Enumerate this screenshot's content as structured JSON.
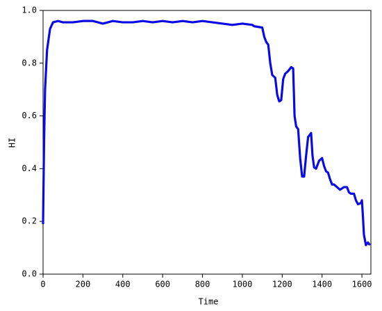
{
  "chart_data": {
    "type": "line",
    "x_label": "Time",
    "y_label": "HI",
    "x": [
      0,
      5,
      10,
      20,
      35,
      50,
      75,
      100,
      150,
      200,
      250,
      275,
      300,
      350,
      400,
      450,
      500,
      550,
      600,
      650,
      700,
      750,
      800,
      850,
      900,
      950,
      1000,
      1050,
      1060,
      1100,
      1110,
      1120,
      1130,
      1140,
      1150,
      1165,
      1175,
      1185,
      1195,
      1205,
      1215,
      1230,
      1245,
      1255,
      1262,
      1270,
      1280,
      1290,
      1300,
      1310,
      1320,
      1330,
      1345,
      1352,
      1360,
      1370,
      1385,
      1400,
      1410,
      1420,
      1430,
      1440,
      1450,
      1460,
      1475,
      1490,
      1500,
      1510,
      1525,
      1535,
      1545,
      1560,
      1570,
      1580,
      1595,
      1600,
      1605,
      1610,
      1620,
      1630,
      1640
    ],
    "series": [
      {
        "name": "HI",
        "color": "#0a0ae6",
        "values": [
          0.19,
          0.5,
          0.7,
          0.85,
          0.93,
          0.955,
          0.96,
          0.955,
          0.955,
          0.96,
          0.96,
          0.955,
          0.95,
          0.96,
          0.955,
          0.955,
          0.96,
          0.955,
          0.96,
          0.955,
          0.96,
          0.955,
          0.96,
          0.955,
          0.95,
          0.945,
          0.95,
          0.945,
          0.94,
          0.935,
          0.9,
          0.88,
          0.87,
          0.8,
          0.755,
          0.745,
          0.68,
          0.655,
          0.66,
          0.74,
          0.76,
          0.77,
          0.785,
          0.78,
          0.6,
          0.56,
          0.55,
          0.44,
          0.37,
          0.37,
          0.45,
          0.52,
          0.535,
          0.45,
          0.405,
          0.4,
          0.43,
          0.44,
          0.41,
          0.39,
          0.385,
          0.36,
          0.34,
          0.34,
          0.33,
          0.32,
          0.325,
          0.33,
          0.33,
          0.31,
          0.305,
          0.305,
          0.28,
          0.265,
          0.27,
          0.28,
          0.22,
          0.15,
          0.11,
          0.12,
          0.11
        ]
      }
    ],
    "xlim": [
      0,
      1645
    ],
    "xticks": [
      0,
      200,
      400,
      600,
      800,
      1000,
      1200,
      1400,
      1600
    ],
    "ylim": [
      0,
      1
    ],
    "yticks": [
      {
        "value": 0,
        "label": "0.0"
      },
      0.2,
      0.4,
      0.6,
      0.8,
      {
        "value": 1,
        "label": "1.0"
      }
    ],
    "grid": false
  }
}
